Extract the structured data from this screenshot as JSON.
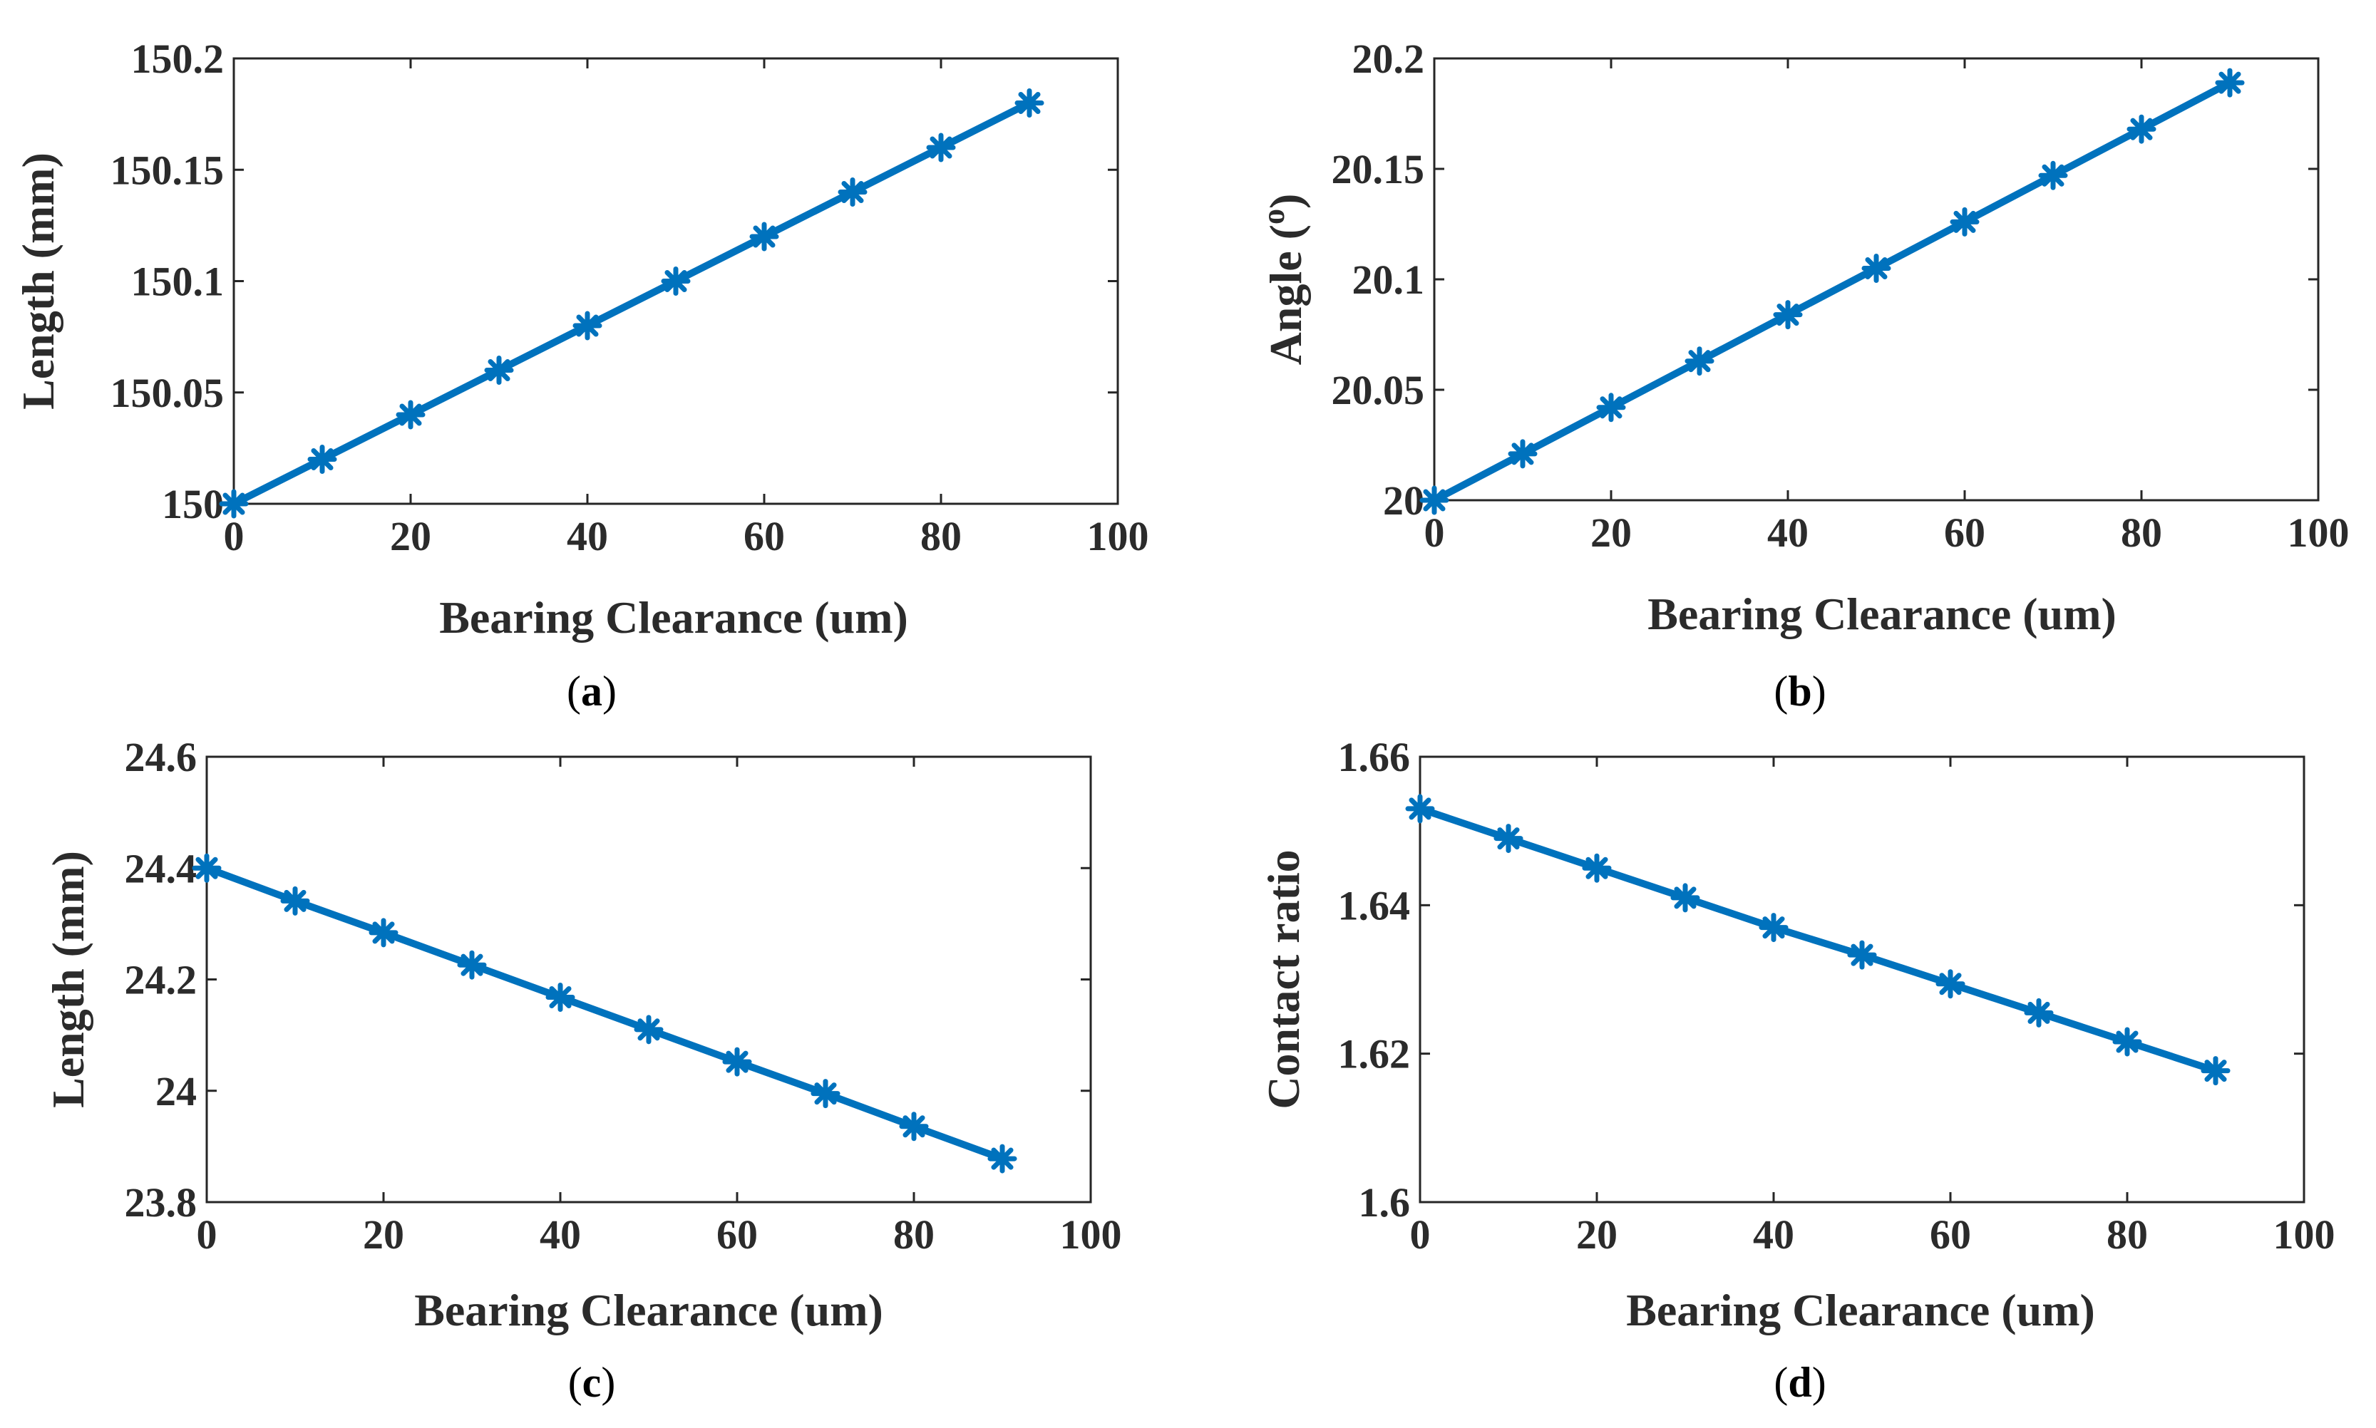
{
  "colors": {
    "series": "#0072BD",
    "axis": "#262626",
    "text": "#2b2b2b"
  },
  "chart_data": [
    {
      "id": "a",
      "type": "line",
      "marker": "asterisk",
      "caption": {
        "open": "(",
        "letter": "a",
        "close": ")"
      },
      "xlabel": "Bearing Clearance  (um)",
      "ylabel": "Length  (mm)",
      "xlim": [
        0,
        100
      ],
      "ylim": [
        150,
        150.2
      ],
      "xticks": [
        0,
        20,
        40,
        60,
        80,
        100
      ],
      "xtick_labels": [
        "0",
        "20",
        "40",
        "60",
        "80",
        "100"
      ],
      "yticks": [
        150,
        150.05,
        150.1,
        150.15,
        150.2
      ],
      "ytick_labels": [
        "150",
        "150.05",
        "150.1",
        "150.15",
        "150.2"
      ],
      "x": [
        0,
        10,
        20,
        30,
        40,
        50,
        60,
        70,
        80,
        90
      ],
      "y": [
        150.0,
        150.02,
        150.04,
        150.06,
        150.08,
        150.1,
        150.12,
        150.14,
        150.16,
        150.18
      ]
    },
    {
      "id": "b",
      "type": "line",
      "marker": "asterisk",
      "caption": {
        "open": "(",
        "letter": "b",
        "close": ")"
      },
      "xlabel": "Bearing Clearance (um)",
      "ylabel": "Angle  (",
      "ylabel_sup": "o",
      "ylabel_end": ")",
      "xlim": [
        0,
        100
      ],
      "ylim": [
        20,
        20.2
      ],
      "xticks": [
        0,
        20,
        40,
        60,
        80,
        100
      ],
      "xtick_labels": [
        "0",
        "20",
        "40",
        "60",
        "80",
        "100"
      ],
      "yticks": [
        20,
        20.05,
        20.1,
        20.15,
        20.2
      ],
      "ytick_labels": [
        "20",
        "20.05",
        "20.1",
        "20.15",
        "20.2"
      ],
      "x": [
        0,
        10,
        20,
        30,
        40,
        50,
        60,
        70,
        80,
        90
      ],
      "y": [
        20.0,
        20.021,
        20.042,
        20.063,
        20.084,
        20.105,
        20.126,
        20.147,
        20.168,
        20.189
      ]
    },
    {
      "id": "c",
      "type": "line",
      "marker": "asterisk",
      "caption": {
        "open": "(",
        "letter": "c",
        "close": ")"
      },
      "xlabel": "Bearing Clearance (um)",
      "ylabel": "Length  (mm)",
      "xlim": [
        0,
        100
      ],
      "ylim": [
        23.8,
        24.6
      ],
      "xticks": [
        0,
        20,
        40,
        60,
        80,
        100
      ],
      "xtick_labels": [
        "0",
        "20",
        "40",
        "60",
        "80",
        "100"
      ],
      "yticks": [
        23.8,
        24.0,
        24.2,
        24.4,
        24.6
      ],
      "ytick_labels": [
        "23.8",
        "24",
        "24.2",
        "24.4",
        "24.6"
      ],
      "x": [
        0,
        10,
        20,
        30,
        40,
        50,
        60,
        70,
        80,
        90
      ],
      "y": [
        24.4,
        24.341,
        24.284,
        24.226,
        24.168,
        24.11,
        24.052,
        23.995,
        23.936,
        23.878
      ]
    },
    {
      "id": "d",
      "type": "line",
      "marker": "asterisk",
      "caption": {
        "open": "(",
        "letter": "d",
        "close": ")"
      },
      "xlabel": "Bearing Clearance (um)",
      "ylabel": "Contact ratio",
      "xlim": [
        0,
        100
      ],
      "ylim": [
        1.6,
        1.66
      ],
      "xticks": [
        0,
        20,
        40,
        60,
        80,
        100
      ],
      "xtick_labels": [
        "0",
        "20",
        "40",
        "60",
        "80",
        "100"
      ],
      "yticks": [
        1.6,
        1.62,
        1.64,
        1.66
      ],
      "ytick_labels": [
        "1.6",
        "1.62",
        "1.64",
        "1.66"
      ],
      "x": [
        0,
        10,
        20,
        30,
        40,
        50,
        60,
        70,
        80,
        90
      ],
      "y": [
        1.653,
        1.649,
        1.645,
        1.641,
        1.637,
        1.6333,
        1.6294,
        1.6255,
        1.6216,
        1.6177
      ]
    }
  ]
}
